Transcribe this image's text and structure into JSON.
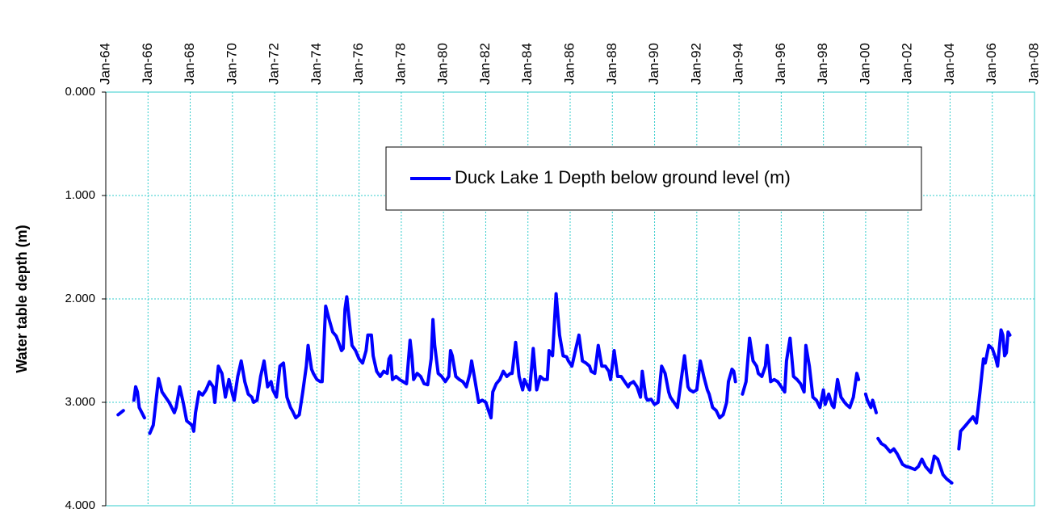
{
  "chart_data": {
    "type": "line",
    "y_axis_label": "Water table depth (m)",
    "ylim": [
      0,
      4
    ],
    "y_reversed": true,
    "yticks": [
      {
        "value": 0,
        "label": "0.000"
      },
      {
        "value": 1,
        "label": "1.000"
      },
      {
        "value": 2,
        "label": "2.000"
      },
      {
        "value": 3,
        "label": "3.000"
      },
      {
        "value": 4,
        "label": "4.000"
      }
    ],
    "xlim": [
      "Jan-64",
      "Jan-08"
    ],
    "xticks": [
      "Jan-64",
      "Jan-66",
      "Jan-68",
      "Jan-70",
      "Jan-72",
      "Jan-74",
      "Jan-76",
      "Jan-78",
      "Jan-80",
      "Jan-82",
      "Jan-84",
      "Jan-86",
      "Jan-88",
      "Jan-90",
      "Jan-92",
      "Jan-94",
      "Jan-96",
      "Jan-98",
      "Jan-00",
      "Jan-02",
      "Jan-04",
      "Jan-06",
      "Jan-08"
    ],
    "grid": true,
    "legend": "top-right",
    "series": [
      {
        "name": "Duck Lake 1 Depth below ground level (m)",
        "color": "#0000ff",
        "x": [
          "Aug-64",
          "Nov-64",
          null,
          "May-65",
          "Jun-65",
          "Jul-65",
          "Aug-65",
          "Nov-65",
          null,
          "Feb-66",
          "Apr-66",
          "Jul-66",
          "Sep-66",
          "Jan-67",
          "Apr-67",
          "May-67",
          "Jul-67",
          "Sep-67",
          "Nov-67",
          "Feb-68",
          "Mar-68",
          "Apr-68",
          "Jun-68",
          "Aug-68",
          "Oct-68",
          "Dec-68",
          "Feb-69",
          "Mar-69",
          "May-69",
          "Jul-69",
          "Sep-69",
          "Nov-69",
          "Jan-70",
          "Feb-70",
          "Apr-70",
          "Jun-70",
          "Aug-70",
          "Oct-70",
          "Dec-70",
          "Jan-71",
          "Mar-71",
          "May-71",
          "Jul-71",
          "Sep-71",
          "Nov-71",
          "Dec-71",
          "Feb-72",
          "Apr-72",
          "Jun-72",
          "Aug-72",
          "Oct-72",
          "Nov-72",
          "Jan-73",
          "Mar-73",
          "May-73",
          "Jul-73",
          "Aug-73",
          "Oct-73",
          "Nov-73",
          "Jan-74",
          "Mar-74",
          "Apr-74",
          "Jun-74",
          "Aug-74",
          "Oct-74",
          "Dec-74",
          "Feb-75",
          "Mar-75",
          "Apr-75",
          "May-75",
          "Jun-75",
          "Aug-75",
          "Sep-75",
          "Nov-75",
          "Jan-76",
          "Mar-76",
          "May-76",
          "Jun-76",
          "Aug-76",
          "Sep-76",
          "Nov-76",
          "Jan-77",
          "Mar-77",
          "May-77",
          "Jun-77",
          "Jul-77",
          "Aug-77",
          "Oct-77",
          "Dec-77",
          "Feb-78",
          "Apr-78",
          "Jun-78",
          "Jul-78",
          "Aug-78",
          "Oct-78",
          "Dec-78",
          "Feb-79",
          "Apr-79",
          "Jun-79",
          "Jul-79",
          "Aug-79",
          "Oct-79",
          "Dec-79",
          "Feb-80",
          "Apr-80",
          "May-80",
          "Jun-80",
          "Aug-80",
          "Oct-80",
          "Dec-80",
          "Feb-81",
          "Apr-81",
          "May-81",
          "Jul-81",
          "Sep-81",
          "Nov-81",
          "Jan-82",
          "Mar-82",
          "Apr-82",
          "May-82",
          "Jul-82",
          "Sep-82",
          "Nov-82",
          "Jan-83",
          "Mar-83",
          "Apr-83",
          "Jun-83",
          "Aug-83",
          "Oct-83",
          "Nov-83",
          "Jan-84",
          "Feb-84",
          "Apr-84",
          "Jun-84",
          "Aug-84",
          "Oct-84",
          "Dec-84",
          "Jan-85",
          "Mar-85",
          "May-85",
          "Jul-85",
          "Sep-85",
          "Nov-85",
          "Dec-85",
          "Feb-86",
          "Apr-86",
          "Jun-86",
          "Aug-86",
          "Oct-86",
          "Dec-86",
          "Jan-87",
          "Mar-87",
          "May-87",
          "Jul-87",
          "Sep-87",
          "Nov-87",
          "Dec-87",
          "Feb-88",
          "Apr-88",
          "Jun-88",
          "Aug-88",
          "Oct-88",
          "Nov-88",
          "Jan-89",
          "Mar-89",
          "May-89",
          "Jun-89",
          "Aug-89",
          "Sep-89",
          "Nov-89",
          "Jan-90",
          "Mar-90",
          "May-90",
          "Jul-90",
          "Sep-90",
          "Oct-90",
          "Dec-90",
          "Feb-91",
          "Apr-91",
          "Jun-91",
          "Aug-91",
          "Sep-91",
          "Nov-91",
          "Jan-92",
          "Mar-92",
          "May-92",
          "Jul-92",
          "Aug-92",
          "Oct-92",
          "Dec-92",
          "Feb-93",
          "Apr-93",
          "Jun-93",
          "Jul-93",
          "Sep-93",
          "Oct-93",
          "Nov-93",
          null,
          "Mar-94",
          "May-94",
          "Jul-94",
          "Sep-94",
          "Nov-94",
          "Dec-94",
          "Feb-95",
          "Apr-95",
          "May-95",
          "Jul-95",
          "Sep-95",
          "Nov-95",
          "Jan-96",
          "Mar-96",
          "Apr-96",
          "Jun-96",
          "Aug-96",
          "Oct-96",
          "Dec-96",
          "Feb-97",
          "Mar-97",
          "May-97",
          "Jul-97",
          "Sep-97",
          "Nov-97",
          "Jan-98",
          "Feb-98",
          "Apr-98",
          "Jun-98",
          "Jul-98",
          "Sep-98",
          "Nov-98",
          "Jan-99",
          "Feb-99",
          "Apr-99",
          "Jun-99",
          "Aug-99",
          "Sep-99",
          null,
          "Jan-00",
          "Feb-00",
          "Apr-00",
          "May-00",
          "Jul-00",
          null,
          "Aug-00",
          "Oct-00",
          "Dec-00",
          "Mar-01",
          "May-01",
          "Jul-01",
          "Oct-01",
          "Dec-01",
          "Feb-02",
          "May-02",
          "Jul-02",
          "Sep-02",
          "Nov-02",
          "Feb-03",
          "Apr-03",
          "Jun-03",
          "Sep-03",
          "Nov-03",
          "Feb-04",
          null,
          "Jun-04",
          "Jul-04",
          "Oct-04",
          "Dec-04",
          "Feb-05",
          "Apr-05",
          "Jun-05",
          "Aug-05",
          "Sep-05",
          "Nov-05",
          "Jan-06",
          "Mar-06",
          "Apr-06",
          "Jun-06",
          "Jul-06",
          "Aug-06",
          "Sep-06",
          "Oct-06",
          "Nov-06"
        ],
        "values": [
          3.12,
          3.08,
          null,
          2.98,
          2.85,
          2.9,
          3.05,
          3.15,
          null,
          3.3,
          3.22,
          2.77,
          2.9,
          3.0,
          3.1,
          3.05,
          2.85,
          3.0,
          3.18,
          3.22,
          3.28,
          3.1,
          2.9,
          2.93,
          2.88,
          2.8,
          2.85,
          3.0,
          2.65,
          2.72,
          2.95,
          2.78,
          2.92,
          2.98,
          2.75,
          2.6,
          2.8,
          2.92,
          2.95,
          3.0,
          2.98,
          2.75,
          2.6,
          2.85,
          2.8,
          2.88,
          2.95,
          2.65,
          2.62,
          2.95,
          3.05,
          3.08,
          3.15,
          3.12,
          2.9,
          2.65,
          2.45,
          2.68,
          2.72,
          2.78,
          2.8,
          2.8,
          2.07,
          2.2,
          2.32,
          2.36,
          2.45,
          2.5,
          2.48,
          2.1,
          1.98,
          2.3,
          2.45,
          2.5,
          2.58,
          2.62,
          2.5,
          2.35,
          2.35,
          2.55,
          2.7,
          2.75,
          2.7,
          2.72,
          2.58,
          2.55,
          2.78,
          2.75,
          2.78,
          2.8,
          2.82,
          2.4,
          2.55,
          2.78,
          2.72,
          2.75,
          2.82,
          2.83,
          2.58,
          2.2,
          2.45,
          2.72,
          2.75,
          2.8,
          2.75,
          2.5,
          2.55,
          2.75,
          2.78,
          2.8,
          2.85,
          2.72,
          2.6,
          2.8,
          3.0,
          2.98,
          3.0,
          3.1,
          3.15,
          2.9,
          2.82,
          2.78,
          2.7,
          2.75,
          2.72,
          2.72,
          2.42,
          2.75,
          2.88,
          2.78,
          2.85,
          2.88,
          2.48,
          2.88,
          2.75,
          2.78,
          2.78,
          2.5,
          2.55,
          1.95,
          2.35,
          2.55,
          2.56,
          2.6,
          2.65,
          2.5,
          2.35,
          2.6,
          2.62,
          2.65,
          2.7,
          2.72,
          2.45,
          2.65,
          2.65,
          2.7,
          2.78,
          2.5,
          2.75,
          2.75,
          2.8,
          2.85,
          2.82,
          2.8,
          2.85,
          2.95,
          2.7,
          2.95,
          2.98,
          2.97,
          3.02,
          3.0,
          2.65,
          2.72,
          2.9,
          2.95,
          3.0,
          3.05,
          2.8,
          2.55,
          2.85,
          2.88,
          2.9,
          2.88,
          2.6,
          2.75,
          2.88,
          2.92,
          3.05,
          3.08,
          3.15,
          3.12,
          3.0,
          2.8,
          2.68,
          2.7,
          2.8,
          null,
          2.92,
          2.8,
          2.38,
          2.6,
          2.65,
          2.72,
          2.75,
          2.65,
          2.45,
          2.8,
          2.78,
          2.8,
          2.85,
          2.9,
          2.6,
          2.38,
          2.75,
          2.78,
          2.82,
          2.9,
          2.45,
          2.65,
          2.95,
          2.98,
          3.05,
          2.88,
          3.02,
          2.92,
          3.03,
          3.05,
          2.78,
          2.95,
          3.0,
          3.02,
          3.05,
          2.95,
          2.72,
          2.78,
          null,
          2.92,
          2.98,
          3.05,
          2.98,
          3.1,
          null,
          3.35,
          3.4,
          3.42,
          3.48,
          3.45,
          3.5,
          3.6,
          3.62,
          3.63,
          3.65,
          3.62,
          3.55,
          3.62,
          3.68,
          3.52,
          3.55,
          3.7,
          3.74,
          3.78,
          null,
          3.45,
          3.28,
          3.22,
          3.18,
          3.14,
          3.2,
          2.9,
          2.58,
          2.62,
          2.45,
          2.48,
          2.58,
          2.65,
          2.3,
          2.35,
          2.55,
          2.52,
          2.32,
          2.35
        ]
      }
    ]
  }
}
